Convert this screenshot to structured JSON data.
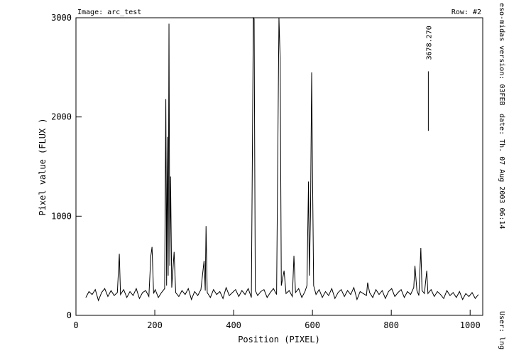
{
  "chart_data": {
    "type": "line",
    "header_left": "Image: arc_test",
    "header_right": "Row: #2",
    "side_texts": [
      "eso-midas version: 03FEB",
      "date: Th. 07 Aug 2003 06:14",
      "User: lng"
    ],
    "xlabel": "Position (PIXEL)",
    "ylabel": "Pixel value (FLUX )",
    "xlim": [
      0,
      1032
    ],
    "xticks": [
      0,
      200,
      400,
      600,
      800,
      1000
    ],
    "ylim": [
      0,
      3000
    ],
    "yticks": [
      0,
      1000,
      2000,
      3000
    ],
    "color": "#000000",
    "annotation": {
      "text": "3678.270",
      "x": 894,
      "y": [
        1860,
        2460
      ]
    },
    "x": [
      25,
      33,
      41,
      49,
      57,
      65,
      73,
      81,
      89,
      97,
      105,
      110,
      113,
      121,
      129,
      137,
      145,
      153,
      161,
      169,
      177,
      185,
      190,
      193,
      197,
      201,
      209,
      217,
      225,
      228,
      230,
      232,
      234,
      236,
      238,
      240,
      243,
      249,
      253,
      261,
      269,
      277,
      285,
      293,
      301,
      309,
      317,
      325,
      328,
      330,
      333,
      341,
      349,
      357,
      365,
      373,
      381,
      389,
      397,
      405,
      413,
      421,
      429,
      437,
      445,
      450,
      452,
      455,
      461,
      469,
      477,
      485,
      493,
      501,
      509,
      515,
      518,
      521,
      528,
      533,
      541,
      549,
      553,
      557,
      565,
      573,
      581,
      586,
      590,
      592,
      595,
      598,
      600,
      603,
      609,
      617,
      625,
      633,
      641,
      649,
      657,
      665,
      673,
      681,
      689,
      697,
      705,
      713,
      721,
      729,
      737,
      740,
      745,
      753,
      761,
      769,
      777,
      785,
      793,
      801,
      809,
      817,
      825,
      833,
      841,
      849,
      857,
      860,
      865,
      870,
      875,
      878,
      884,
      890,
      893,
      901,
      909,
      917,
      925,
      933,
      941,
      949,
      957,
      965,
      973,
      981,
      989,
      997,
      1005,
      1013,
      1021
    ],
    "values": [
      180,
      240,
      210,
      260,
      150,
      230,
      270,
      190,
      250,
      200,
      230,
      620,
      210,
      260,
      180,
      240,
      200,
      270,
      170,
      230,
      250,
      190,
      600,
      690,
      220,
      260,
      180,
      230,
      270,
      2180,
      300,
      1800,
      400,
      2940,
      500,
      1400,
      280,
      640,
      230,
      190,
      250,
      210,
      270,
      160,
      240,
      200,
      260,
      550,
      250,
      900,
      230,
      180,
      260,
      210,
      240,
      170,
      280,
      200,
      230,
      260,
      190,
      250,
      210,
      270,
      180,
      3000,
      2990,
      250,
      200,
      240,
      260,
      180,
      230,
      270,
      210,
      3000,
      2600,
      300,
      450,
      220,
      250,
      190,
      600,
      230,
      270,
      180,
      240,
      300,
      1350,
      400,
      1000,
      2450,
      1500,
      300,
      210,
      260,
      180,
      240,
      200,
      270,
      170,
      230,
      260,
      190,
      250,
      210,
      280,
      160,
      240,
      220,
      200,
      330,
      230,
      180,
      260,
      210,
      250,
      170,
      240,
      270,
      190,
      230,
      260,
      180,
      240,
      210,
      280,
      500,
      250,
      200,
      680,
      250,
      220,
      450,
      220,
      260,
      190,
      240,
      210,
      170,
      250,
      200,
      230,
      180,
      240,
      160,
      220,
      190,
      230,
      170,
      210
    ]
  }
}
